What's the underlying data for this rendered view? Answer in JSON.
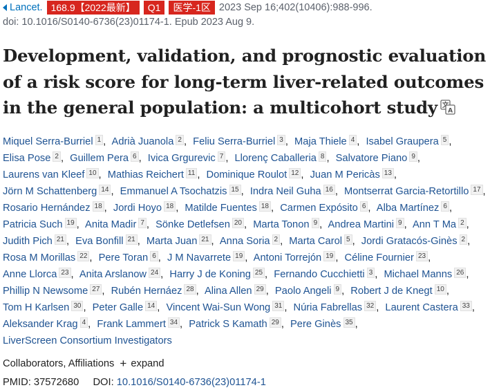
{
  "citation": {
    "journal": "Lancet.",
    "badge_if": "168.9【2022最新】",
    "badge_q": "Q1",
    "badge_zone": "医学-1区",
    "volume_info": "2023 Sep 16;402(10406):988-996.",
    "doi_epub": "doi: 10.1016/S0140-6736(23)01174-1. Epub 2023 Aug 9.",
    "badge_color": "#d7261e",
    "link_color": "#0071bc"
  },
  "title": "Development, validation, and prognostic evaluation of a risk score for long-term liver-related outcomes in the general population: a multicohort study",
  "authors": [
    {
      "name": "Miquel Serra-Burriel",
      "aff": "1"
    },
    {
      "name": "Adrià Juanola",
      "aff": "2"
    },
    {
      "name": "Feliu Serra-Burriel",
      "aff": "3"
    },
    {
      "name": "Maja Thiele",
      "aff": "4"
    },
    {
      "name": "Isabel Graupera",
      "aff": "5"
    },
    {
      "name": "Elisa Pose",
      "aff": "2"
    },
    {
      "name": "Guillem Pera",
      "aff": "6"
    },
    {
      "name": "Ivica Grgurevic",
      "aff": "7"
    },
    {
      "name": "Llorenç Caballeria",
      "aff": "8"
    },
    {
      "name": "Salvatore Piano",
      "aff": "9"
    },
    {
      "name": "Laurens van Kleef",
      "aff": "10"
    },
    {
      "name": "Mathias Reichert",
      "aff": "11"
    },
    {
      "name": "Dominique Roulot",
      "aff": "12"
    },
    {
      "name": "Juan M Pericàs",
      "aff": "13"
    },
    {
      "name": "Jörn M Schattenberg",
      "aff": "14"
    },
    {
      "name": "Emmanuel A Tsochatzis",
      "aff": "15"
    },
    {
      "name": "Indra Neil Guha",
      "aff": "16"
    },
    {
      "name": "Montserrat Garcia-Retortillo",
      "aff": "17"
    },
    {
      "name": "Rosario Hernández",
      "aff": "18"
    },
    {
      "name": "Jordi Hoyo",
      "aff": "18"
    },
    {
      "name": "Matilde Fuentes",
      "aff": "18"
    },
    {
      "name": "Carmen Expósito",
      "aff": "6"
    },
    {
      "name": "Alba Martínez",
      "aff": "6"
    },
    {
      "name": "Patricia Such",
      "aff": "19"
    },
    {
      "name": "Anita Madir",
      "aff": "7"
    },
    {
      "name": "Sönke Detlefsen",
      "aff": "20"
    },
    {
      "name": "Marta Tonon",
      "aff": "9"
    },
    {
      "name": "Andrea Martini",
      "aff": "9"
    },
    {
      "name": "Ann T Ma",
      "aff": "2"
    },
    {
      "name": "Judith Pich",
      "aff": "21"
    },
    {
      "name": "Eva Bonfill",
      "aff": "21"
    },
    {
      "name": "Marta Juan",
      "aff": "21"
    },
    {
      "name": "Anna Soria",
      "aff": "2"
    },
    {
      "name": "Marta Carol",
      "aff": "5"
    },
    {
      "name": "Jordi Gratacós-Ginès",
      "aff": "2"
    },
    {
      "name": "Rosa M Morillas",
      "aff": "22"
    },
    {
      "name": "Pere Toran",
      "aff": "6"
    },
    {
      "name": "J M Navarrete",
      "aff": "19"
    },
    {
      "name": "Antoni Torrejón",
      "aff": "19"
    },
    {
      "name": "Céline Fournier",
      "aff": "23"
    },
    {
      "name": "Anne Llorca",
      "aff": "23"
    },
    {
      "name": "Anita Arslanow",
      "aff": "24"
    },
    {
      "name": "Harry J de Koning",
      "aff": "25"
    },
    {
      "name": "Fernando Cucchietti",
      "aff": "3"
    },
    {
      "name": "Michael Manns",
      "aff": "26"
    },
    {
      "name": "Phillip N Newsome",
      "aff": "27"
    },
    {
      "name": "Rubén Hernáez",
      "aff": "28"
    },
    {
      "name": "Alina Allen",
      "aff": "29"
    },
    {
      "name": "Paolo Angeli",
      "aff": "9"
    },
    {
      "name": "Robert J de Knegt",
      "aff": "10"
    },
    {
      "name": "Tom H Karlsen",
      "aff": "30"
    },
    {
      "name": "Peter Galle",
      "aff": "14"
    },
    {
      "name": "Vincent Wai-Sun Wong",
      "aff": "31"
    },
    {
      "name": "Núria Fabrellas",
      "aff": "32"
    },
    {
      "name": "Laurent Castera",
      "aff": "33"
    },
    {
      "name": "Aleksander Krag",
      "aff": "4"
    },
    {
      "name": "Frank Lammert",
      "aff": "34"
    },
    {
      "name": "Patrick S Kamath",
      "aff": "29"
    },
    {
      "name": "Pere Ginès",
      "aff": "35"
    },
    {
      "name": "LiverScreen Consortium Investigators",
      "aff": ""
    }
  ],
  "author_separator": ",",
  "collaborators": {
    "label": "Collaborators, Affiliations",
    "expand": "expand"
  },
  "identifiers": {
    "pmid_label": "PMID:",
    "pmid": "37572680",
    "doi_label": "DOI:",
    "doi": "10.1016/S0140-6736(23)01174-1"
  }
}
